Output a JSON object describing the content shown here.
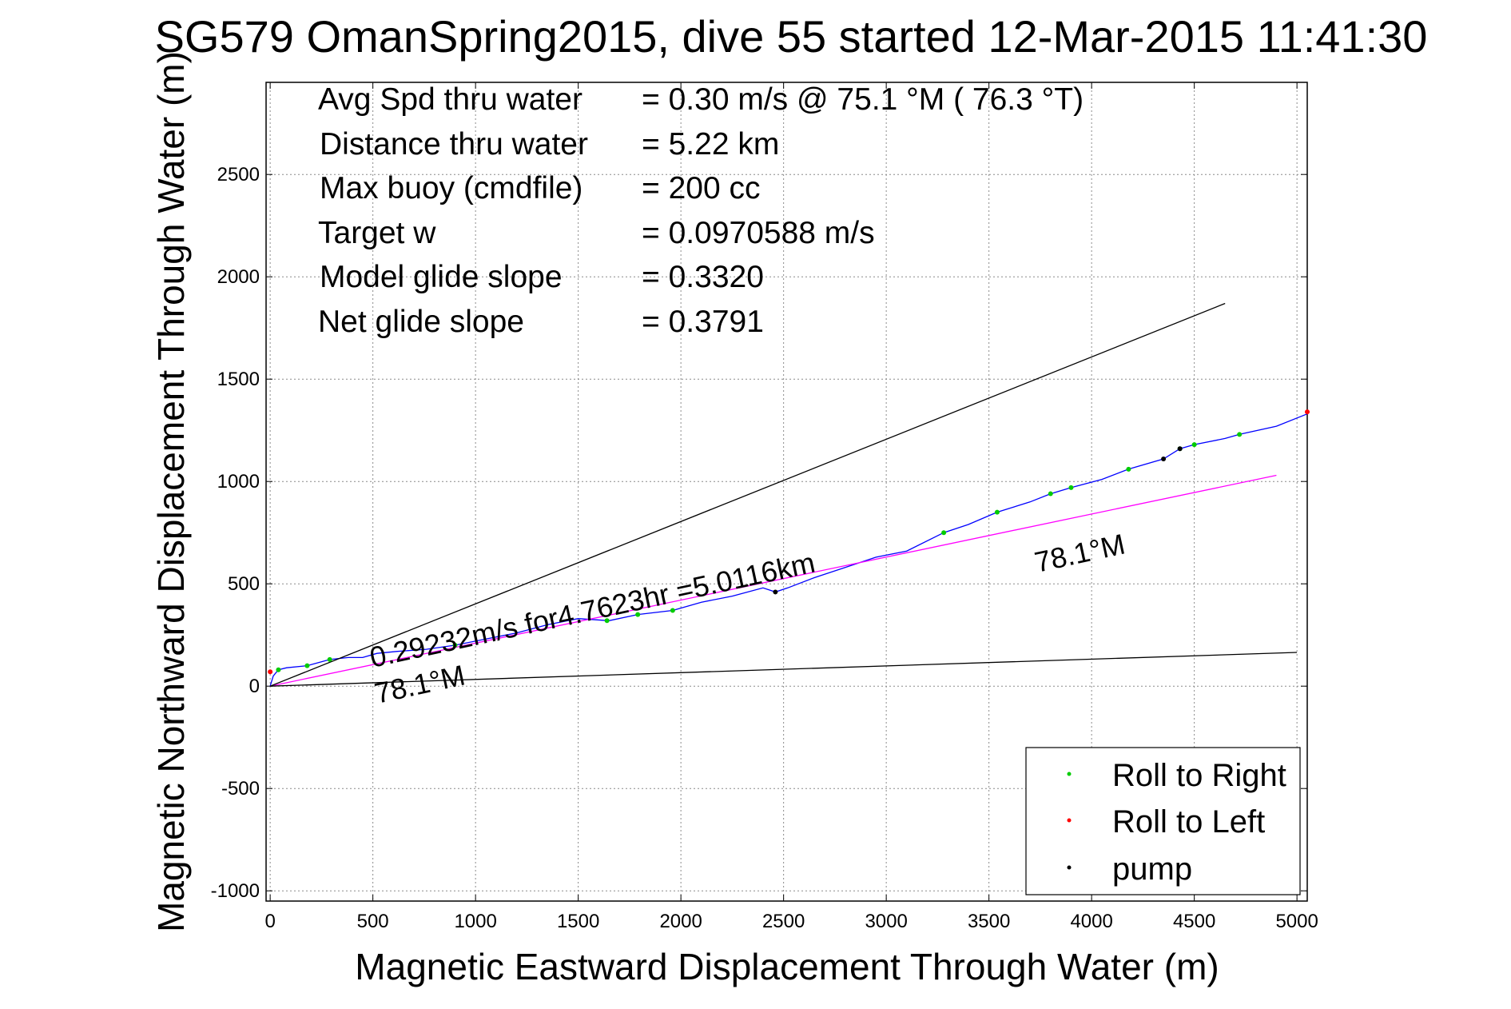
{
  "title": "SG579 OmanSpring2015, dive 55 started 12-Mar-2015 11:41:30",
  "info": [
    {
      "label": "Avg Spd thru water",
      "value": "=  0.30 m/s @  75.1 °M ( 76.3 °T)"
    },
    {
      "label": "Distance thru water",
      "value": "=  5.22 km"
    },
    {
      "label": "Max buoy (cmdfile)",
      "value": "= 200 cc"
    },
    {
      "label": "Target w",
      "value": "= 0.0970588 m/s"
    },
    {
      "label": "Model glide slope",
      "value": "= 0.3320"
    },
    {
      "label": "Net glide slope",
      "value": "= 0.3791"
    }
  ],
  "annotations": {
    "speed_text": "0.29232m/s for4.7623hr =5.0116km",
    "heading_start": "78.1°M",
    "heading_end": "78.1°M"
  },
  "legend": [
    {
      "label": "Roll to Right",
      "color": "#00cc00"
    },
    {
      "label": "Roll to Left",
      "color": "#ff0000"
    },
    {
      "label": "pump",
      "color": "#000000"
    }
  ],
  "chart_data": {
    "type": "line",
    "title": "SG579 OmanSpring2015, dive 55 started 12-Mar-2015 11:41:30",
    "xlabel": "Magnetic Eastward Displacement Through Water (m)",
    "ylabel": "Magnetic Northward Displacement Through Water (m)",
    "xlim": [
      -20,
      5050
    ],
    "ylim": [
      -1050,
      2950
    ],
    "xticks": [
      0,
      500,
      1000,
      1500,
      2000,
      2500,
      3000,
      3500,
      4000,
      4500,
      5000
    ],
    "yticks": [
      -1000,
      -500,
      0,
      500,
      1000,
      1500,
      2000,
      2500
    ],
    "grid": true,
    "legend_position": "bottom-right",
    "series": [
      {
        "color": "#0000ff",
        "x": [
          0,
          15,
          40,
          80,
          180,
          290,
          380,
          450,
          520,
          620,
          760,
          900,
          1050,
          1200,
          1350,
          1500,
          1650,
          1790,
          1960,
          2100,
          2250,
          2400,
          2460,
          2520,
          2650,
          2800,
          2950,
          3100,
          3280,
          3400,
          3540,
          3700,
          3800,
          3900,
          4050,
          4180,
          4350,
          4430,
          4500,
          4650,
          4720,
          4900,
          5050
        ],
        "y": [
          0,
          50,
          80,
          90,
          100,
          130,
          140,
          140,
          160,
          170,
          180,
          200,
          230,
          260,
          300,
          330,
          320,
          350,
          370,
          410,
          440,
          480,
          460,
          480,
          530,
          580,
          630,
          660,
          750,
          790,
          850,
          900,
          940,
          970,
          1010,
          1060,
          1110,
          1160,
          1180,
          1210,
          1230,
          1270,
          1330
        ]
      },
      {
        "color": "#ff00ff",
        "x": [
          0,
          4900
        ],
        "y": [
          0,
          1030
        ]
      },
      {
        "color": "#000000",
        "x": [
          0,
          4650
        ],
        "y": [
          0,
          1870
        ]
      },
      {
        "color": "#000000",
        "x": [
          0,
          5000
        ],
        "y": [
          0,
          165
        ]
      }
    ],
    "markers": {
      "roll_to_right": {
        "x": [
          40,
          180,
          290,
          900,
          1640,
          1790,
          1960,
          3280,
          3540,
          3800,
          3900,
          4180,
          4430,
          4500,
          4720
        ],
        "y": [
          80,
          100,
          130,
          200,
          320,
          350,
          370,
          750,
          850,
          940,
          970,
          1060,
          1160,
          1180,
          1230
        ]
      },
      "roll_to_left": {
        "x": [
          0,
          5050
        ],
        "y": [
          70,
          1340
        ]
      },
      "pump": {
        "x": [
          2460,
          4350,
          4430
        ],
        "y": [
          460,
          1110,
          1160
        ]
      }
    }
  }
}
